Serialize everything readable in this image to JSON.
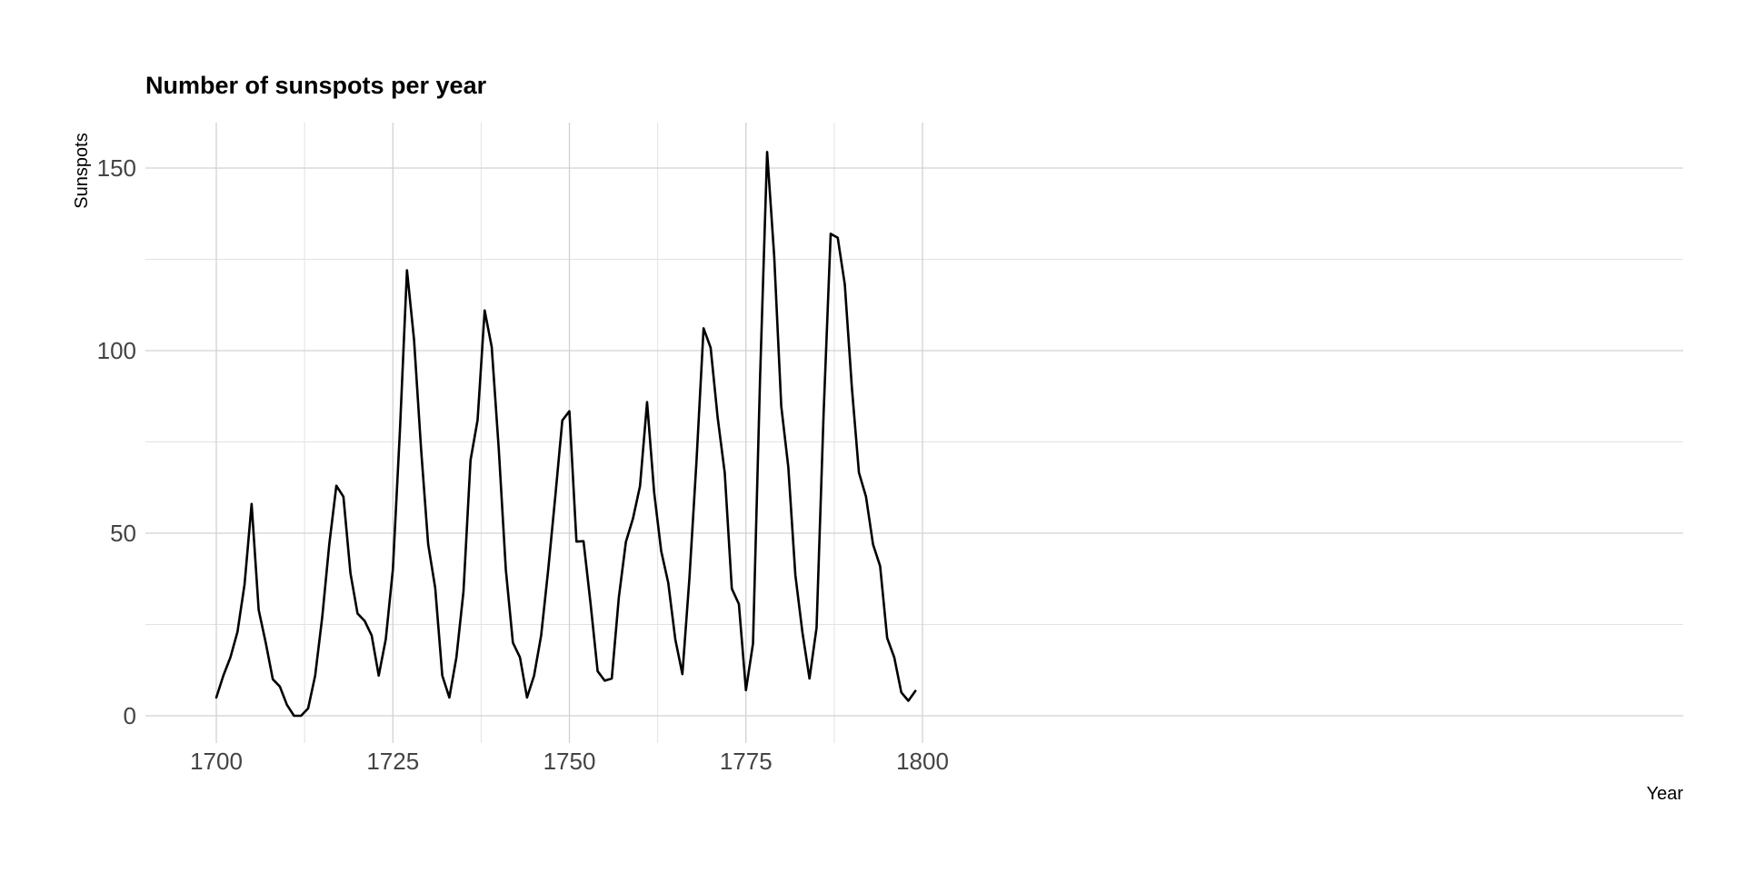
{
  "chart_data": {
    "type": "line",
    "title": "Number of sunspots per year",
    "xlabel": "Year",
    "ylabel": "Sunspots",
    "xlim": [
      1700,
      1800
    ],
    "ylim": [
      0,
      160
    ],
    "x_ticks": [
      1700,
      1725,
      1750,
      1775,
      1800
    ],
    "y_ticks": [
      0,
      50,
      100,
      150
    ],
    "grid": true,
    "series": [
      {
        "name": "Sunspots",
        "color": "#000000",
        "x": [
          1700,
          1701,
          1702,
          1703,
          1704,
          1705,
          1706,
          1707,
          1708,
          1709,
          1710,
          1711,
          1712,
          1713,
          1714,
          1715,
          1716,
          1717,
          1718,
          1719,
          1720,
          1721,
          1722,
          1723,
          1724,
          1725,
          1726,
          1727,
          1728,
          1729,
          1730,
          1731,
          1732,
          1733,
          1734,
          1735,
          1736,
          1737,
          1738,
          1739,
          1740,
          1741,
          1742,
          1743,
          1744,
          1745,
          1746,
          1747,
          1748,
          1749,
          1750,
          1751,
          1752,
          1753,
          1754,
          1755,
          1756,
          1757,
          1758,
          1759,
          1760,
          1761,
          1762,
          1763,
          1764,
          1765,
          1766,
          1767,
          1768,
          1769,
          1770,
          1771,
          1772,
          1773,
          1774,
          1775,
          1776,
          1777,
          1778,
          1779,
          1780,
          1781,
          1782,
          1783,
          1784,
          1785,
          1786,
          1787,
          1788,
          1789,
          1790,
          1791,
          1792,
          1793,
          1794,
          1795,
          1796,
          1797,
          1798,
          1799
        ],
        "values": [
          5,
          11,
          16,
          23,
          36,
          58,
          29,
          20,
          10,
          8,
          3,
          0,
          0,
          2,
          11,
          27,
          47,
          63,
          60,
          39,
          28,
          26,
          22,
          11,
          21,
          40,
          78,
          122,
          103,
          73,
          47,
          35,
          11,
          5,
          16,
          34,
          70,
          81,
          111,
          101,
          73,
          40,
          20,
          16,
          5,
          11,
          22,
          40,
          60,
          80.9,
          83.4,
          47.7,
          47.8,
          30.7,
          12.2,
          9.6,
          10.2,
          32.4,
          47.6,
          54,
          62.9,
          85.9,
          61.2,
          45.1,
          36.4,
          20.9,
          11.4,
          37.8,
          69.8,
          106.1,
          100.8,
          81.6,
          66.5,
          34.8,
          30.6,
          7,
          19.8,
          92.5,
          154.4,
          125.9,
          84.8,
          68.1,
          38.5,
          22.8,
          10.2,
          24.1,
          82.9,
          132,
          130.9,
          118.1,
          89.9,
          66.6,
          60,
          46.9,
          41,
          21.3,
          16,
          6.4,
          4.1,
          6.8
        ]
      }
    ]
  }
}
